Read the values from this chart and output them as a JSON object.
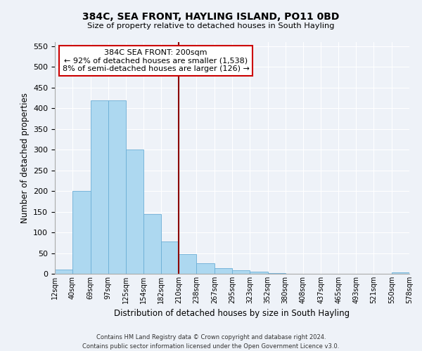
{
  "title": "384C, SEA FRONT, HAYLING ISLAND, PO11 0BD",
  "subtitle": "Size of property relative to detached houses in South Hayling",
  "xlabel": "Distribution of detached houses by size in South Hayling",
  "ylabel": "Number of detached properties",
  "bar_color": "#add8f0",
  "bar_edge_color": "#6baed6",
  "background_color": "#eef2f8",
  "grid_color": "#ffffff",
  "bin_edges": [
    12,
    40,
    69,
    97,
    125,
    154,
    182,
    210,
    238,
    267,
    295,
    323,
    352,
    380,
    408,
    437,
    465,
    493,
    521,
    550,
    578
  ],
  "bin_labels": [
    "12sqm",
    "40sqm",
    "69sqm",
    "97sqm",
    "125sqm",
    "154sqm",
    "182sqm",
    "210sqm",
    "238sqm",
    "267sqm",
    "295sqm",
    "323sqm",
    "352sqm",
    "380sqm",
    "408sqm",
    "437sqm",
    "465sqm",
    "493sqm",
    "521sqm",
    "550sqm",
    "578sqm"
  ],
  "bar_heights": [
    10,
    200,
    420,
    420,
    300,
    145,
    78,
    48,
    25,
    13,
    9,
    5,
    2,
    0,
    0,
    0,
    0,
    0,
    0,
    3
  ],
  "ylim": [
    0,
    560
  ],
  "yticks": [
    0,
    50,
    100,
    150,
    200,
    250,
    300,
    350,
    400,
    450,
    500,
    550
  ],
  "vline_x": 210,
  "vline_color": "#8b0000",
  "annotation_title": "384C SEA FRONT: 200sqm",
  "annotation_line1": "← 92% of detached houses are smaller (1,538)",
  "annotation_line2": "8% of semi-detached houses are larger (126) →",
  "annotation_box_color": "#ffffff",
  "annotation_box_edge": "#cc0000",
  "footer1": "Contains HM Land Registry data © Crown copyright and database right 2024.",
  "footer2": "Contains public sector information licensed under the Open Government Licence v3.0."
}
